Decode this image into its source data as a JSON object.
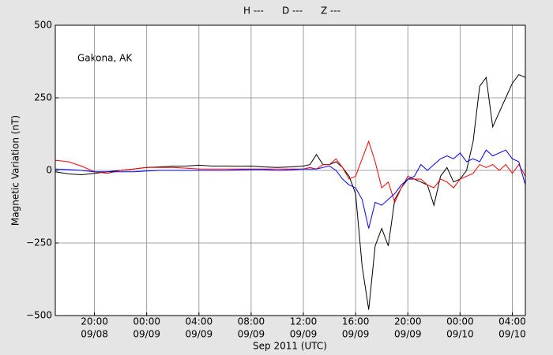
{
  "chart_data": {
    "type": "line",
    "annotation": "Gakona, AK",
    "x_label": "Sep 2011 (UTC)",
    "y_label": "Magnetic Variation (nT)",
    "xlim": [
      "2011-09-08T17:00",
      "2011-09-10T05:00"
    ],
    "xticks": [
      {
        "value": "2011-09-08T20:00",
        "label": [
          "20:00",
          "09/08"
        ]
      },
      {
        "value": "2011-09-09T00:00",
        "label": [
          "00:00",
          "09/09"
        ]
      },
      {
        "value": "2011-09-09T04:00",
        "label": [
          "04:00",
          "09/09"
        ]
      },
      {
        "value": "2011-09-09T08:00",
        "label": [
          "08:00",
          "09/09"
        ]
      },
      {
        "value": "2011-09-09T12:00",
        "label": [
          "12:00",
          "09/09"
        ]
      },
      {
        "value": "2011-09-09T16:00",
        "label": [
          "16:00",
          "09/09"
        ]
      },
      {
        "value": "2011-09-09T20:00",
        "label": [
          "20:00",
          "09/09"
        ]
      },
      {
        "value": "2011-09-10T00:00",
        "label": [
          "00:00",
          "09/10"
        ]
      },
      {
        "value": "2011-09-10T04:00",
        "label": [
          "04:00",
          "09/10"
        ]
      }
    ],
    "ylim": [
      -500,
      500
    ],
    "yticks": [
      {
        "value": -500,
        "label": "−500"
      },
      {
        "value": -250,
        "label": "−250"
      },
      0,
      250,
      500
    ],
    "grid": true,
    "x": [
      "2011-09-08T17:00",
      "2011-09-08T18:00",
      "2011-09-08T19:00",
      "2011-09-08T20:00",
      "2011-09-08T21:00",
      "2011-09-08T22:00",
      "2011-09-08T23:00",
      "2011-09-09T00:00",
      "2011-09-09T01:00",
      "2011-09-09T02:00",
      "2011-09-09T03:00",
      "2011-09-09T04:00",
      "2011-09-09T05:00",
      "2011-09-09T06:00",
      "2011-09-09T07:00",
      "2011-09-09T08:00",
      "2011-09-09T09:00",
      "2011-09-09T10:00",
      "2011-09-09T11:00",
      "2011-09-09T12:00",
      "2011-09-09T12:30",
      "2011-09-09T13:00",
      "2011-09-09T13:30",
      "2011-09-09T14:00",
      "2011-09-09T14:30",
      "2011-09-09T15:00",
      "2011-09-09T15:30",
      "2011-09-09T16:00",
      "2011-09-09T16:30",
      "2011-09-09T17:00",
      "2011-09-09T17:30",
      "2011-09-09T18:00",
      "2011-09-09T18:30",
      "2011-09-09T19:00",
      "2011-09-09T19:30",
      "2011-09-09T20:00",
      "2011-09-09T20:30",
      "2011-09-09T21:00",
      "2011-09-09T21:30",
      "2011-09-09T22:00",
      "2011-09-09T22:30",
      "2011-09-09T23:00",
      "2011-09-09T23:30",
      "2011-09-10T00:00",
      "2011-09-10T00:30",
      "2011-09-10T01:00",
      "2011-09-10T01:30",
      "2011-09-10T02:00",
      "2011-09-10T02:30",
      "2011-09-10T03:00",
      "2011-09-10T03:30",
      "2011-09-10T04:00",
      "2011-09-10T04:30",
      "2011-09-10T05:00"
    ],
    "series": [
      {
        "name": "H ---",
        "color": "#000000",
        "values": [
          -5,
          -12,
          -15,
          -10,
          -5,
          0,
          5,
          10,
          12,
          14,
          15,
          18,
          15,
          15,
          14,
          15,
          12,
          10,
          12,
          15,
          20,
          55,
          20,
          20,
          30,
          10,
          -20,
          -80,
          -330,
          -480,
          -260,
          -200,
          -260,
          -100,
          -60,
          -30,
          -30,
          -40,
          -50,
          -120,
          -20,
          10,
          -40,
          -30,
          0,
          100,
          290,
          320,
          150,
          200,
          250,
          300,
          330,
          320
        ]
      },
      {
        "name": "D ---",
        "color": "#ff0000",
        "values": [
          35,
          30,
          15,
          -5,
          -10,
          0,
          5,
          10,
          10,
          10,
          8,
          5,
          5,
          5,
          5,
          5,
          5,
          5,
          5,
          5,
          10,
          5,
          20,
          20,
          40,
          10,
          -30,
          -20,
          40,
          100,
          30,
          -60,
          -40,
          -110,
          -60,
          -20,
          -30,
          -30,
          -50,
          -60,
          -30,
          -40,
          -60,
          -30,
          -20,
          -10,
          20,
          10,
          20,
          0,
          20,
          -10,
          20,
          -20
        ]
      },
      {
        "name": "Z ---",
        "color": "#0000ff",
        "values": [
          5,
          3,
          0,
          -5,
          -5,
          -5,
          -5,
          -2,
          0,
          0,
          0,
          0,
          0,
          0,
          2,
          3,
          3,
          0,
          2,
          5,
          5,
          5,
          10,
          15,
          0,
          -30,
          -50,
          -60,
          -100,
          -200,
          -110,
          -120,
          -100,
          -80,
          -50,
          -30,
          -20,
          20,
          0,
          20,
          40,
          50,
          40,
          60,
          30,
          40,
          30,
          70,
          50,
          60,
          70,
          40,
          30,
          -50
        ]
      }
    ]
  }
}
